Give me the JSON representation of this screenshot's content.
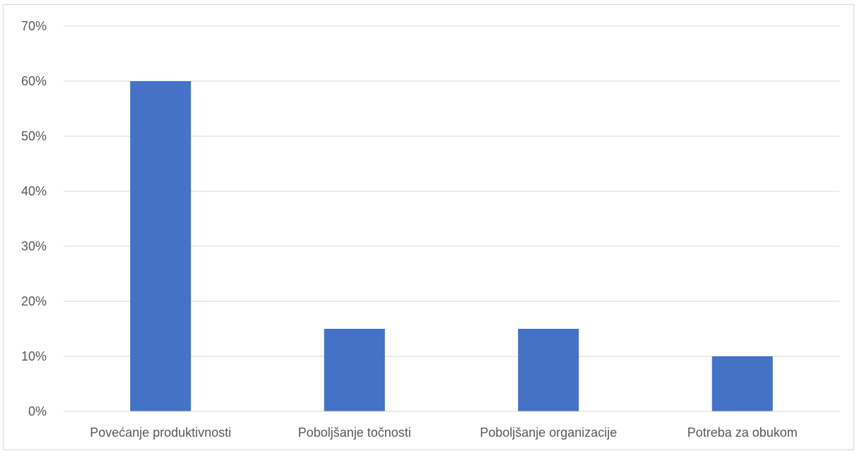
{
  "chart_data": {
    "type": "bar",
    "title": "",
    "xlabel": "",
    "ylabel": "",
    "categories": [
      "Povećanje produktivnosti",
      "Poboljšanje točnosti",
      "Poboljšanje organizacije",
      "Potreba za obukom"
    ],
    "series": [
      {
        "values": [
          60,
          15,
          15,
          10
        ],
        "color": "#4472c4"
      }
    ],
    "ylim": [
      0,
      70
    ],
    "y_ticks": [
      0,
      10,
      20,
      30,
      40,
      50,
      60,
      70
    ],
    "y_tick_labels": [
      "0%",
      "10%",
      "20%",
      "30%",
      "40%",
      "50%",
      "60%",
      "70%"
    ],
    "grid": true,
    "legend": "none",
    "colors": {
      "bar": "#4472c4",
      "grid": "#d9d9d9",
      "axis": "#d9d9d9",
      "text": "#595959"
    }
  }
}
